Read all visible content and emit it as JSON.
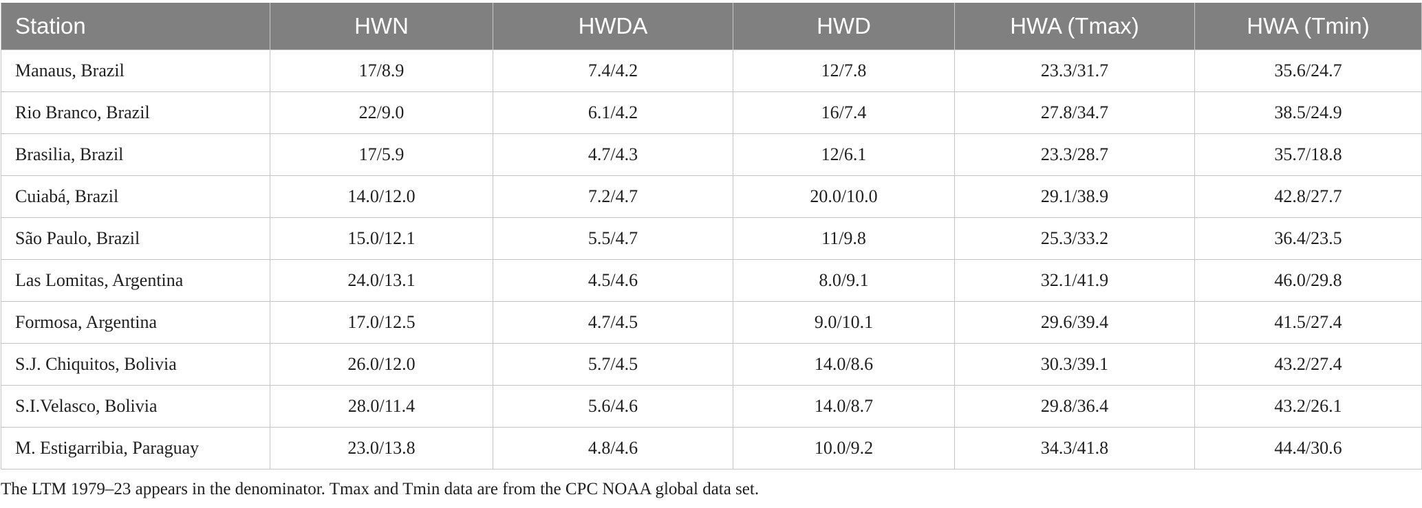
{
  "table": {
    "headers": [
      "Station",
      "HWN",
      "HWDA",
      "HWD",
      "HWA (Tmax)",
      "HWA (Tmin)"
    ],
    "rows": [
      [
        "Manaus, Brazil",
        "17/8.9",
        "7.4/4.2",
        "12/7.8",
        "23.3/31.7",
        "35.6/24.7"
      ],
      [
        "Rio Branco, Brazil",
        "22/9.0",
        "6.1/4.2",
        "16/7.4",
        "27.8/34.7",
        "38.5/24.9"
      ],
      [
        "Brasilia, Brazil",
        "17/5.9",
        "4.7/4.3",
        "12/6.1",
        "23.3/28.7",
        "35.7/18.8"
      ],
      [
        "Cuiabá, Brazil",
        "14.0/12.0",
        "7.2/4.7",
        "20.0/10.0",
        "29.1/38.9",
        "42.8/27.7"
      ],
      [
        "São Paulo, Brazil",
        "15.0/12.1",
        "5.5/4.7",
        "11/9.8",
        "25.3/33.2",
        "36.4/23.5"
      ],
      [
        "Las Lomitas, Argentina",
        "24.0/13.1",
        "4.5/4.6",
        "8.0/9.1",
        "32.1/41.9",
        "46.0/29.8"
      ],
      [
        "Formosa, Argentina",
        "17.0/12.5",
        "4.7/4.5",
        "9.0/10.1",
        "29.6/39.4",
        "41.5/27.4"
      ],
      [
        "S.J. Chiquitos, Bolivia",
        "26.0/12.0",
        "5.7/4.5",
        "14.0/8.6",
        "30.3/39.1",
        "43.2/27.4"
      ],
      [
        "S.I.Velasco, Bolivia",
        "28.0/11.4",
        "5.6/4.6",
        "14.0/8.7",
        "29.8/36.4",
        "43.2/26.1"
      ],
      [
        "M. Estigarribia, Paraguay",
        "23.0/13.8",
        "4.8/4.6",
        "10.0/9.2",
        "34.3/41.8",
        "44.4/30.6"
      ]
    ]
  },
  "footnote": "The LTM 1979–23 appears in the denominator. Tmax and Tmin data are from the CPC NOAA global data set.",
  "colors": {
    "header_background": "#808080",
    "header_text": "#ffffff",
    "grid_lines": "#c4c4c4"
  }
}
